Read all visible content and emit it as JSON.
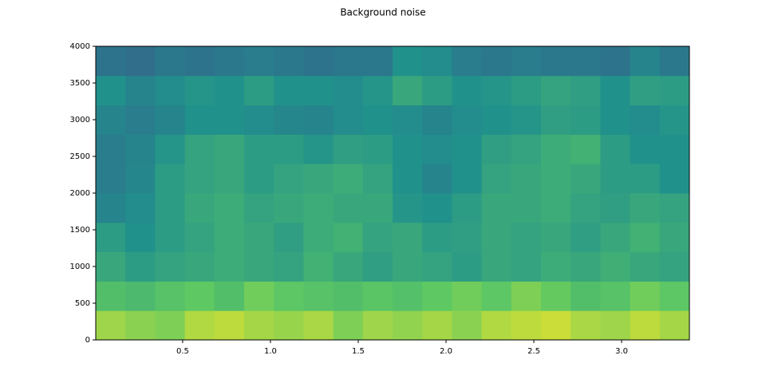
{
  "chart_data": {
    "type": "heatmap",
    "title": "Background noise",
    "colormap": "viridis",
    "xlim": [
      0.005,
      3.386
    ],
    "xticks": [
      0.5,
      {
        "value": 1.0,
        "label": "1.0"
      },
      1.5,
      {
        "value": 2.0,
        "label": "2.0"
      },
      2.5,
      {
        "value": 3.0,
        "label": "3.0"
      }
    ],
    "ylim": [
      0,
      4000
    ],
    "yticks": [
      0,
      500,
      1000,
      1500,
      2000,
      2500,
      3000,
      3500,
      4000
    ],
    "z": [
      [
        0.85,
        0.82,
        0.8,
        0.88,
        0.9,
        0.86,
        0.84,
        0.87,
        0.8,
        0.85,
        0.83,
        0.86,
        0.82,
        0.88,
        0.9,
        0.92,
        0.87,
        0.85,
        0.9,
        0.86
      ],
      [
        0.7,
        0.68,
        0.72,
        0.75,
        0.7,
        0.78,
        0.74,
        0.72,
        0.7,
        0.73,
        0.71,
        0.75,
        0.78,
        0.74,
        0.8,
        0.76,
        0.7,
        0.72,
        0.78,
        0.74
      ],
      [
        0.6,
        0.55,
        0.58,
        0.6,
        0.62,
        0.6,
        0.58,
        0.64,
        0.6,
        0.56,
        0.6,
        0.58,
        0.55,
        0.6,
        0.58,
        0.62,
        0.6,
        0.63,
        0.6,
        0.58
      ],
      [
        0.55,
        0.5,
        0.55,
        0.58,
        0.62,
        0.6,
        0.56,
        0.62,
        0.64,
        0.58,
        0.6,
        0.55,
        0.56,
        0.6,
        0.58,
        0.6,
        0.56,
        0.6,
        0.64,
        0.6
      ],
      [
        0.45,
        0.48,
        0.55,
        0.6,
        0.62,
        0.58,
        0.6,
        0.62,
        0.6,
        0.6,
        0.52,
        0.5,
        0.55,
        0.6,
        0.6,
        0.62,
        0.58,
        0.56,
        0.6,
        0.58
      ],
      [
        0.42,
        0.46,
        0.55,
        0.58,
        0.6,
        0.55,
        0.58,
        0.6,
        0.62,
        0.58,
        0.5,
        0.45,
        0.5,
        0.58,
        0.6,
        0.62,
        0.6,
        0.55,
        0.55,
        0.5
      ],
      [
        0.42,
        0.45,
        0.52,
        0.58,
        0.6,
        0.55,
        0.55,
        0.52,
        0.56,
        0.55,
        0.5,
        0.48,
        0.5,
        0.56,
        0.58,
        0.62,
        0.64,
        0.55,
        0.5,
        0.5
      ],
      [
        0.45,
        0.42,
        0.45,
        0.5,
        0.5,
        0.48,
        0.46,
        0.45,
        0.48,
        0.5,
        0.48,
        0.45,
        0.48,
        0.5,
        0.52,
        0.56,
        0.55,
        0.5,
        0.48,
        0.52
      ],
      [
        0.5,
        0.45,
        0.48,
        0.52,
        0.5,
        0.55,
        0.5,
        0.5,
        0.48,
        0.52,
        0.6,
        0.55,
        0.5,
        0.52,
        0.55,
        0.58,
        0.56,
        0.5,
        0.56,
        0.55
      ],
      [
        0.38,
        0.36,
        0.4,
        0.38,
        0.4,
        0.42,
        0.4,
        0.38,
        0.4,
        0.4,
        0.5,
        0.48,
        0.42,
        0.4,
        0.42,
        0.4,
        0.4,
        0.38,
        0.45,
        0.4
      ]
    ]
  }
}
